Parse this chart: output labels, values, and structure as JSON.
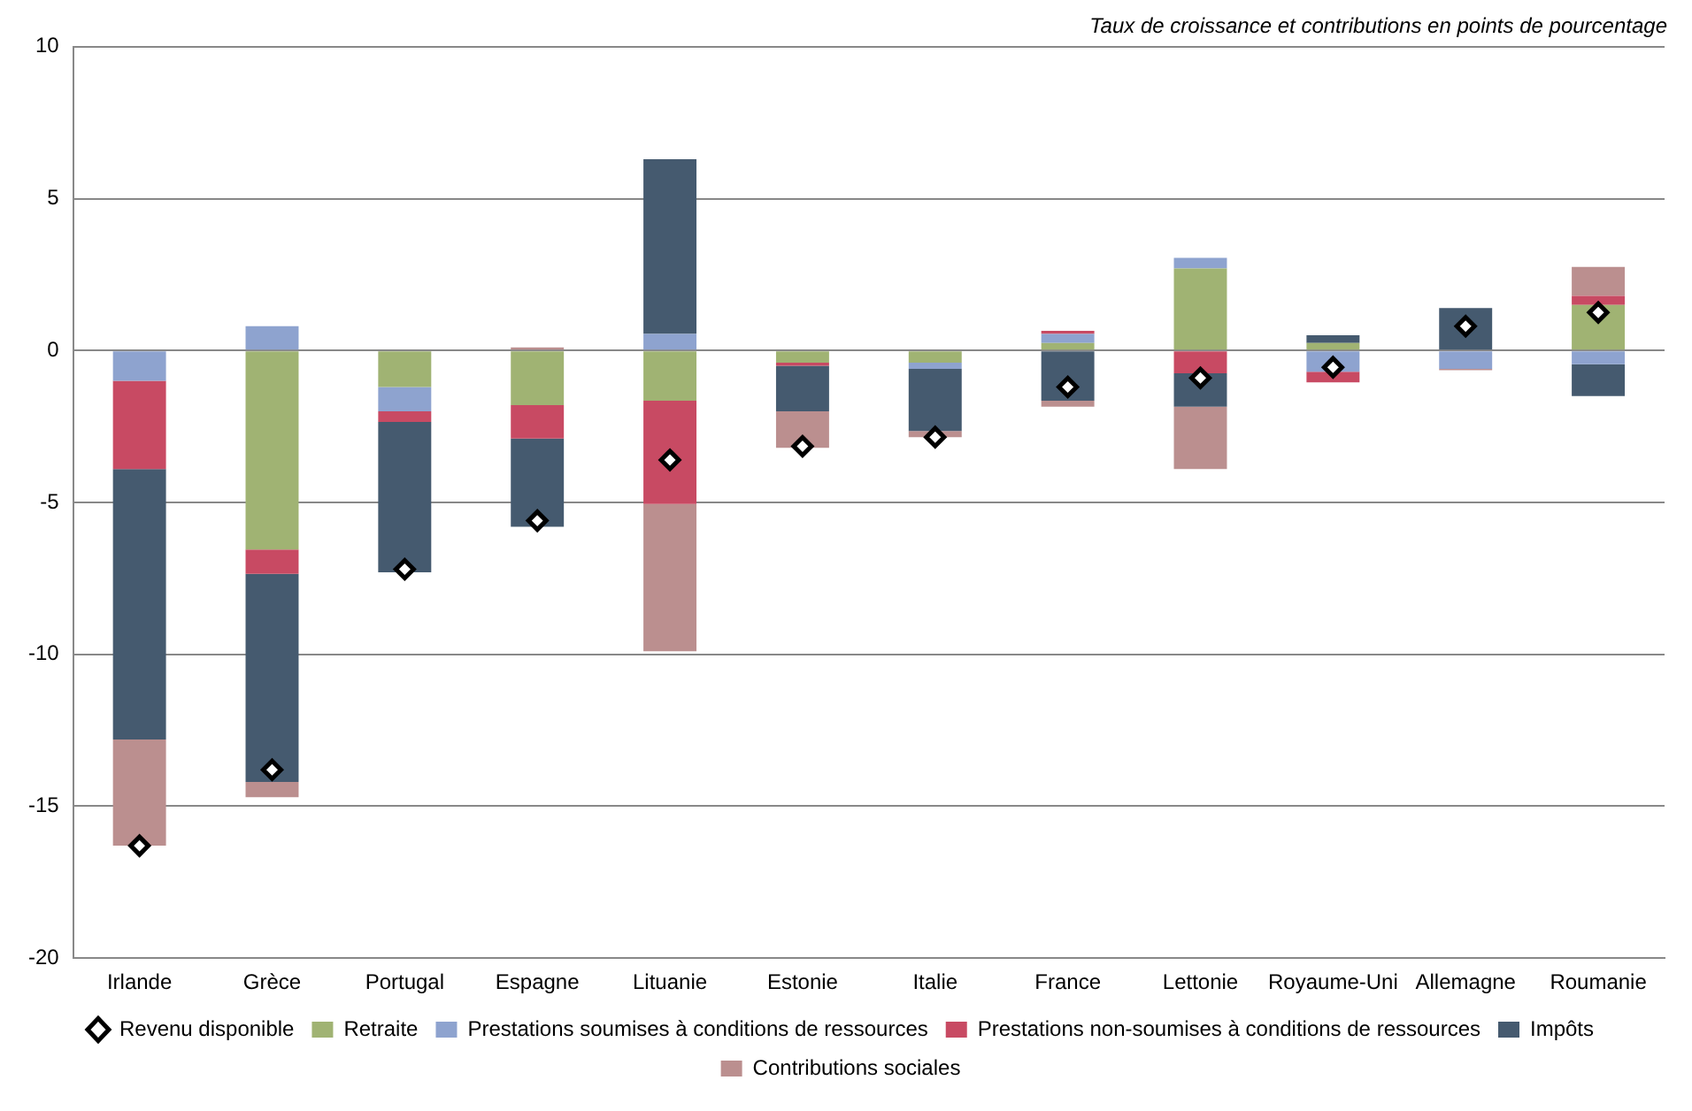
{
  "chart_data": {
    "type": "bar",
    "title": "Taux de croissance et contributions en points de pourcentage",
    "categories": [
      "Irlande",
      "Grèce",
      "Portugal",
      "Espagne",
      "Lituanie",
      "Estonie",
      "Italie",
      "France",
      "Lettonie",
      "Royaume-Uni",
      "Allemagne",
      "Roumanie"
    ],
    "stacked": true,
    "series": [
      {
        "name": "Retraite",
        "color": "#a0b373",
        "values": [
          0,
          -6.55,
          -1.2,
          -1.8,
          -1.65,
          -0.4,
          -0.4,
          0.25,
          2.7,
          0.25,
          0,
          1.5
        ]
      },
      {
        "name": "Prestations soumises à conditions de ressources",
        "color": "#8ea3cf",
        "values": [
          -1.0,
          0.8,
          -0.8,
          0,
          0.55,
          0,
          -0.2,
          0.3,
          0.35,
          -0.7,
          -0.6,
          -0.45
        ]
      },
      {
        "name": "Prestations non-soumises à conditions de ressources",
        "color": "#c84a63",
        "values": [
          -2.9,
          -0.8,
          -0.35,
          -1.1,
          -3.4,
          -0.1,
          0,
          0.1,
          -0.75,
          -0.35,
          0,
          0.3
        ]
      },
      {
        "name": "Impôts",
        "color": "#455a6f",
        "values": [
          -8.9,
          -6.85,
          -4.95,
          -2.9,
          5.75,
          -1.5,
          -2.05,
          -1.65,
          -1.1,
          0.25,
          1.4,
          -1.05
        ]
      },
      {
        "name": "Contributions sociales",
        "color": "#bb8f8f",
        "values": [
          -3.5,
          -0.5,
          0,
          0.1,
          -4.85,
          -1.2,
          -0.2,
          -0.2,
          -2.05,
          0,
          -0.05,
          0.95
        ]
      },
      {
        "name": "Revenu disponible",
        "type": "scatter",
        "marker": "diamond",
        "color": "#000000",
        "x": [
          "Irlande",
          "Grèce",
          "Portugal",
          "Espagne",
          "Lituanie",
          "Estonie",
          "Italie",
          "France",
          "Lettonie",
          "Royaume-Uni",
          "Allemagne",
          "Roumanie"
        ],
        "values": [
          -16.3,
          -13.8,
          -7.2,
          -5.6,
          -3.6,
          -3.15,
          -2.85,
          -1.2,
          -0.9,
          -0.55,
          0.8,
          1.25
        ]
      }
    ],
    "ylim": [
      -20,
      10
    ],
    "yticks": [
      -20,
      -15,
      -10,
      -5,
      0,
      5,
      10
    ],
    "grid": "y",
    "legend": "bottom"
  }
}
